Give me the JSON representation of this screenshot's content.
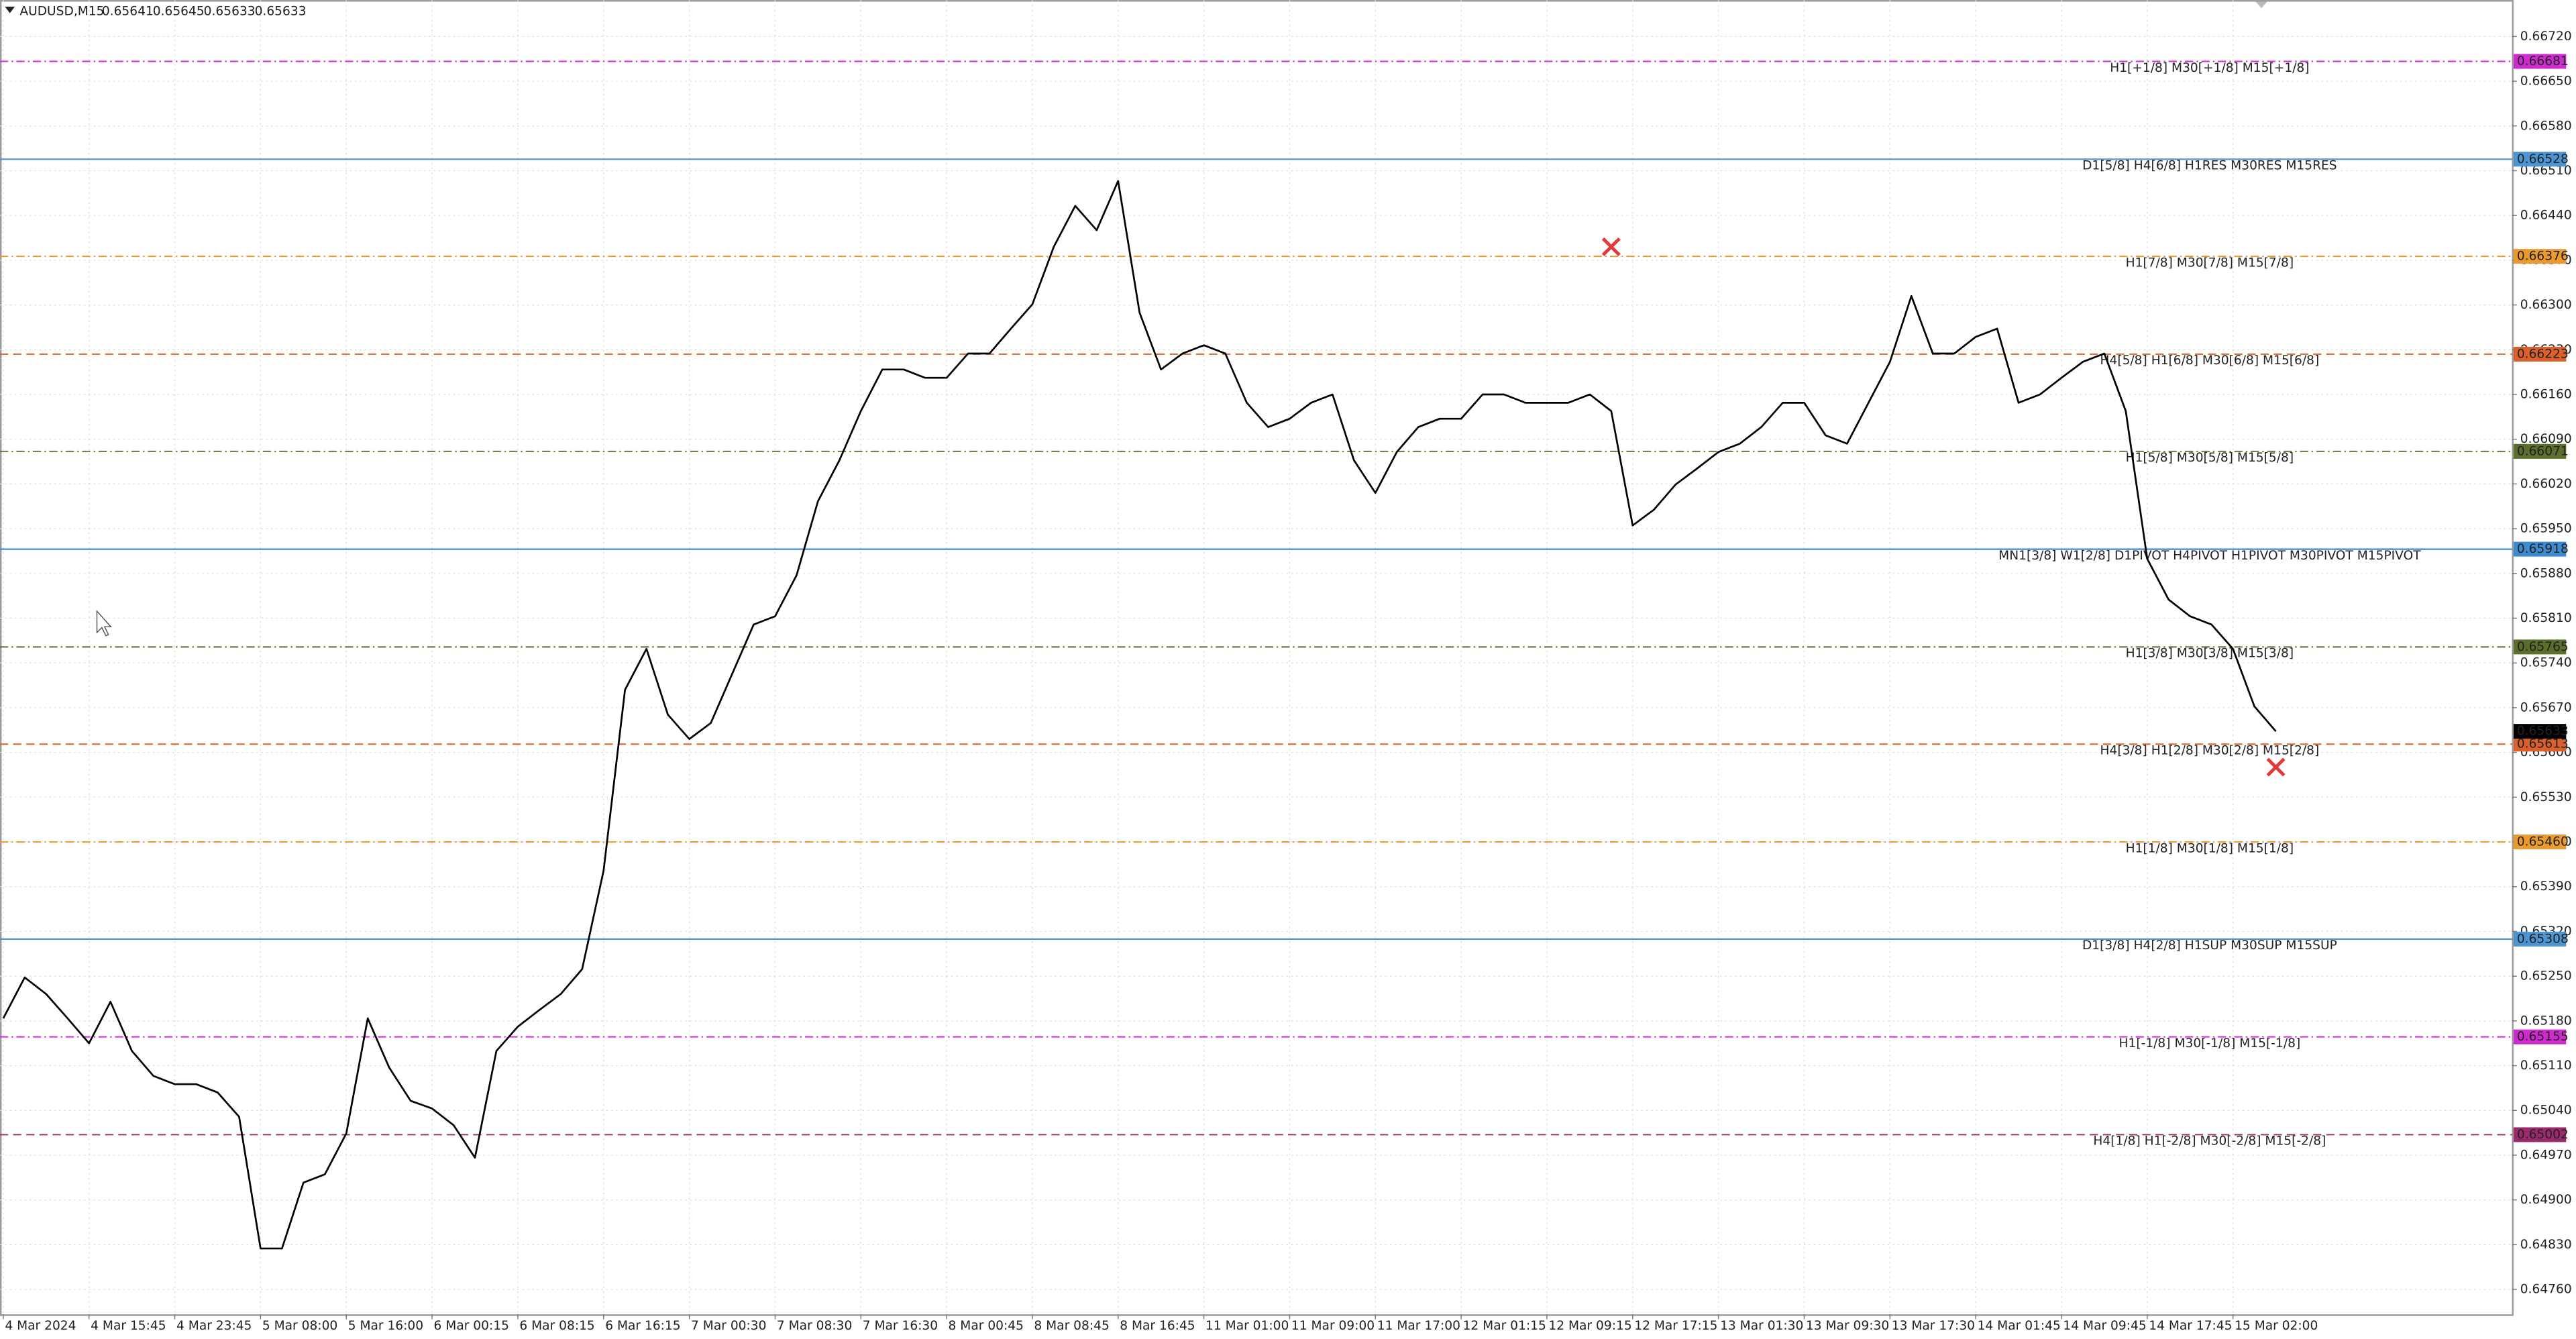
{
  "chart_data": {
    "type": "line",
    "symbol": "AUDUSD,M15",
    "ohlc": [
      0.65641,
      0.65645,
      0.65633,
      0.65633
    ],
    "color": "#000000",
    "grid": true,
    "ylim": [
      0.64721,
      0.66777
    ],
    "yticks": [
      {
        "value": 0.6476,
        "label": "0.64760"
      },
      {
        "value": 0.6483,
        "label": "0.64830"
      },
      {
        "value": 0.649,
        "label": "0.64900"
      },
      {
        "value": 0.6497,
        "label": "0.64970"
      },
      {
        "value": 0.6504,
        "label": "0.65040"
      },
      {
        "value": 0.6511,
        "label": "0.65110"
      },
      {
        "value": 0.6518,
        "label": "0.65180"
      },
      {
        "value": 0.6525,
        "label": "0.65250"
      },
      {
        "value": 0.6532,
        "label": "0.65320"
      },
      {
        "value": 0.6539,
        "label": "0.65390"
      },
      {
        "value": 0.6546,
        "label": "0.65460"
      },
      {
        "value": 0.6553,
        "label": "0.65530"
      },
      {
        "value": 0.656,
        "label": "0.65600"
      },
      {
        "value": 0.6567,
        "label": "0.65670"
      },
      {
        "value": 0.6574,
        "label": "0.65740"
      },
      {
        "value": 0.6581,
        "label": "0.65810"
      },
      {
        "value": 0.6588,
        "label": "0.65880"
      },
      {
        "value": 0.6595,
        "label": "0.65950"
      },
      {
        "value": 0.6602,
        "label": "0.66020"
      },
      {
        "value": 0.6609,
        "label": "0.66090"
      },
      {
        "value": 0.6616,
        "label": "0.66160"
      },
      {
        "value": 0.6623,
        "label": "0.66230"
      },
      {
        "value": 0.663,
        "label": "0.66300"
      },
      {
        "value": 0.6637,
        "label": "0.66370"
      },
      {
        "value": 0.6644,
        "label": "0.66440"
      },
      {
        "value": 0.6651,
        "label": "0.66510"
      },
      {
        "value": 0.6658,
        "label": "0.66580"
      },
      {
        "value": 0.6665,
        "label": "0.66650"
      },
      {
        "value": 0.6672,
        "label": "0.66720"
      }
    ],
    "categories": [
      "4 Mar 2024",
      null,
      null,
      null,
      "4 Mar 15:45",
      null,
      null,
      null,
      "4 Mar 23:45",
      null,
      null,
      null,
      "5 Mar 08:00",
      null,
      null,
      null,
      "5 Mar 16:00",
      null,
      null,
      null,
      "6 Mar 00:15",
      null,
      null,
      null,
      "6 Mar 08:15",
      null,
      null,
      null,
      "6 Mar 16:15",
      null,
      null,
      null,
      "7 Mar 00:30",
      null,
      null,
      null,
      "7 Mar 08:30",
      null,
      null,
      null,
      "7 Mar 16:30",
      null,
      null,
      null,
      "8 Mar 00:45",
      null,
      null,
      null,
      "8 Mar 08:45",
      null,
      null,
      null,
      "8 Mar 16:45",
      null,
      null,
      null,
      "11 Mar 01:00",
      null,
      null,
      null,
      "11 Mar 09:00",
      null,
      null,
      null,
      "11 Mar 17:00",
      null,
      null,
      null,
      "12 Mar 01:15",
      null,
      null,
      null,
      "12 Mar 09:15",
      null,
      null,
      null,
      "12 Mar 17:15",
      null,
      null,
      null,
      "13 Mar 01:30",
      null,
      null,
      null,
      "13 Mar 09:30",
      null,
      null,
      null,
      "13 Mar 17:30",
      null,
      null,
      null,
      "14 Mar 01:45",
      null,
      null,
      null,
      "14 Mar 09:45",
      null,
      null,
      null,
      "14 Mar 17:45",
      null,
      null,
      null,
      "15 Mar 02:00",
      null,
      null
    ],
    "values": [
      0.65184,
      0.65248,
      0.65222,
      0.65184,
      0.65145,
      0.6521,
      0.65133,
      0.65094,
      0.65081,
      0.65081,
      0.65068,
      0.6503,
      0.64824,
      0.64824,
      0.64927,
      0.6494,
      0.65004,
      0.65184,
      0.65107,
      0.65055,
      0.65043,
      0.65017,
      0.64966,
      0.65133,
      0.65171,
      0.65197,
      0.65222,
      0.65261,
      0.65415,
      0.65698,
      0.65762,
      0.65659,
      0.65621,
      0.65646,
      0.65723,
      0.658,
      0.65813,
      0.65877,
      0.65993,
      0.66057,
      0.66134,
      0.66199,
      0.66199,
      0.66186,
      0.66186,
      0.66224,
      0.66224,
      0.66263,
      0.66301,
      0.66391,
      0.66455,
      0.66417,
      0.66494,
      0.66288,
      0.66199,
      0.66224,
      0.66237,
      0.66224,
      0.66147,
      0.66109,
      0.66122,
      0.66147,
      0.6616,
      0.66057,
      0.66006,
      0.6607,
      0.66109,
      0.66122,
      0.66122,
      0.6616,
      0.6616,
      0.66147,
      0.66147,
      0.66147,
      0.6616,
      0.66134,
      0.65955,
      0.6598,
      0.66019,
      0.66044,
      0.6607,
      0.66083,
      0.66109,
      0.66147,
      0.66147,
      0.66096,
      0.66083,
      0.66147,
      0.66211,
      0.66314,
      0.66224,
      0.66224,
      0.6625,
      0.66263,
      0.66147,
      0.6616,
      0.66186,
      0.66211,
      0.66224,
      0.66134,
      0.65903,
      0.65839,
      0.65813,
      0.658,
      0.65762,
      0.65672,
      0.65633
    ],
    "markers": {
      "color": "#e03a3a",
      "values": [
        null,
        null,
        null,
        null,
        null,
        null,
        null,
        null,
        null,
        null,
        null,
        null,
        null,
        null,
        null,
        null,
        null,
        null,
        null,
        null,
        null,
        null,
        null,
        null,
        null,
        null,
        null,
        null,
        null,
        null,
        null,
        null,
        null,
        null,
        null,
        null,
        null,
        null,
        null,
        null,
        null,
        null,
        null,
        null,
        null,
        null,
        null,
        null,
        null,
        null,
        null,
        null,
        null,
        null,
        null,
        null,
        null,
        null,
        null,
        null,
        null,
        null,
        null,
        null,
        null,
        null,
        null,
        null,
        null,
        null,
        null,
        null,
        null,
        null,
        null,
        0.66391,
        null,
        null,
        null,
        null,
        null,
        null,
        null,
        null,
        null,
        null,
        null,
        null,
        null,
        null,
        null,
        null,
        null,
        null,
        null,
        null,
        null,
        null,
        null,
        null,
        null,
        null,
        null,
        null,
        null,
        null,
        0.65577
      ]
    },
    "levels": [
      {
        "value": 0.66681,
        "label": "H1[+1/8] M30[+1/8] M15[+1/8]",
        "color": "#d22ad2",
        "style": "dashdot"
      },
      {
        "value": 0.66528,
        "label": "D1[5/8] H4[6/8] H1RES M30RES M15RES",
        "color": "#4a95d2",
        "style": "solid"
      },
      {
        "value": 0.66376,
        "label": "H1[7/8] M30[7/8] M15[7/8]",
        "color": "#eb9a2e",
        "style": "dashdot"
      },
      {
        "value": 0.66223,
        "label": "H4[5/8] H1[6/8] M30[6/8] M15[6/8]",
        "color": "#dd5f2a",
        "style": "dashed"
      },
      {
        "value": 0.66071,
        "label": "H1[5/8] M30[5/8] M15[5/8]",
        "color": "#5b6e2c",
        "style": "dashdot"
      },
      {
        "value": 0.65918,
        "label": "MN1[3/8] W1[2/8] D1PIVOT H4PIVOT H1PIVOT M30PIVOT M15PIVOT",
        "color": "#3c8ad0",
        "style": "solid"
      },
      {
        "value": 0.65765,
        "label": "H1[3/8] M30[3/8] M15[3/8]",
        "color": "#5b6e2c",
        "style": "dashdot"
      },
      {
        "value": 0.65613,
        "label": "H4[3/8] H1[2/8] M30[2/8] M15[2/8]",
        "color": "#dd5f2a",
        "style": "dashed"
      },
      {
        "value": {
          "value": 0.6546,
          "label": "0.65460"
        },
        "label": "H1[1/8] M30[1/8] M15[1/8]",
        "color": "#eb9a2e",
        "style": "dashdot"
      },
      {
        "value": 0.65308,
        "label": "D1[3/8] H4[2/8] H1SUP M30SUP M15SUP",
        "color": "#4a95d2",
        "style": "solid"
      },
      {
        "value": 0.65155,
        "label": "H1[-1/8] M30[-1/8] M15[-1/8]",
        "color": "#d22ad2",
        "style": "dashdot"
      },
      {
        "value": 0.65002,
        "label": "H4[1/8] H1[-2/8] M30[-2/8] M15[-2/8]",
        "color": "#9c2a6a",
        "style": "dashed"
      }
    ]
  }
}
